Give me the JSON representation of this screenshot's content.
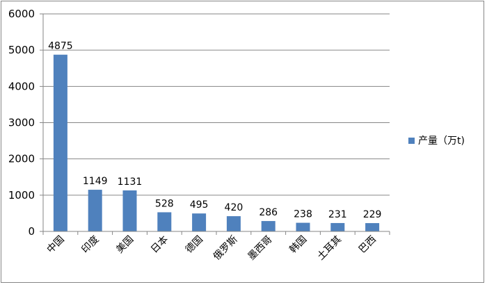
{
  "chart_data": {
    "type": "bar",
    "title": "",
    "xlabel": "",
    "ylabel": "",
    "categories": [
      "中国",
      "印度",
      "美国",
      "日本",
      "德国",
      "俄罗斯",
      "墨西哥",
      "韩国",
      "土耳其",
      "巴西"
    ],
    "series": [
      {
        "name": "产量（万t)",
        "values": [
          4875,
          1149,
          1131,
          528,
          495,
          420,
          286,
          238,
          231,
          229
        ],
        "color": "#4f81bd"
      }
    ],
    "ylim": [
      0,
      6000
    ],
    "yticks": [
      "0",
      "1000",
      "2000",
      "3000",
      "4000",
      "5000",
      "6000"
    ],
    "grid": true,
    "legend_position": "right",
    "data_labels": true
  }
}
